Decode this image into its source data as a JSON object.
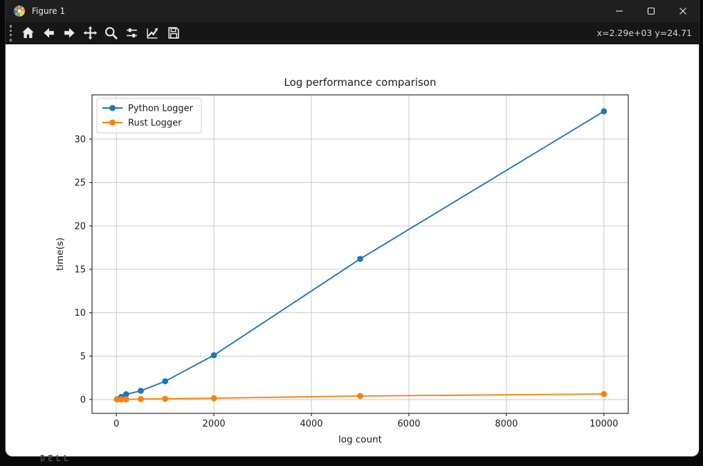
{
  "window": {
    "title": "Figure 1"
  },
  "toolbar": {
    "coordinates": "x=2.29e+03 y=24.71",
    "buttons": [
      "home",
      "back",
      "forward",
      "pan",
      "zoom",
      "configure-subplots",
      "customize",
      "save"
    ]
  },
  "background": {
    "monitor_text": "DELL"
  },
  "chart_data": {
    "type": "line",
    "title": "Log performance comparison",
    "xlabel": "log count",
    "ylabel": "time(s)",
    "x": [
      10,
      100,
      200,
      500,
      1000,
      2000,
      5000,
      10000
    ],
    "series": [
      {
        "name": "Python Logger",
        "color": "#1f77b4",
        "values": [
          0.03,
          0.3,
          0.6,
          1.0,
          2.1,
          5.1,
          16.2,
          33.2
        ]
      },
      {
        "name": "Rust Logger",
        "color": "#ff7f0e",
        "values": [
          0.0,
          0.01,
          0.02,
          0.05,
          0.08,
          0.15,
          0.4,
          0.63
        ]
      }
    ],
    "xticks": [
      0,
      2000,
      4000,
      6000,
      8000,
      10000
    ],
    "yticks": [
      0,
      5,
      10,
      15,
      20,
      25,
      30
    ],
    "xlim": [
      -500,
      10500
    ],
    "ylim": [
      -1.6,
      35.1
    ],
    "grid": true,
    "legend_position": "upper left",
    "marker": "o"
  }
}
